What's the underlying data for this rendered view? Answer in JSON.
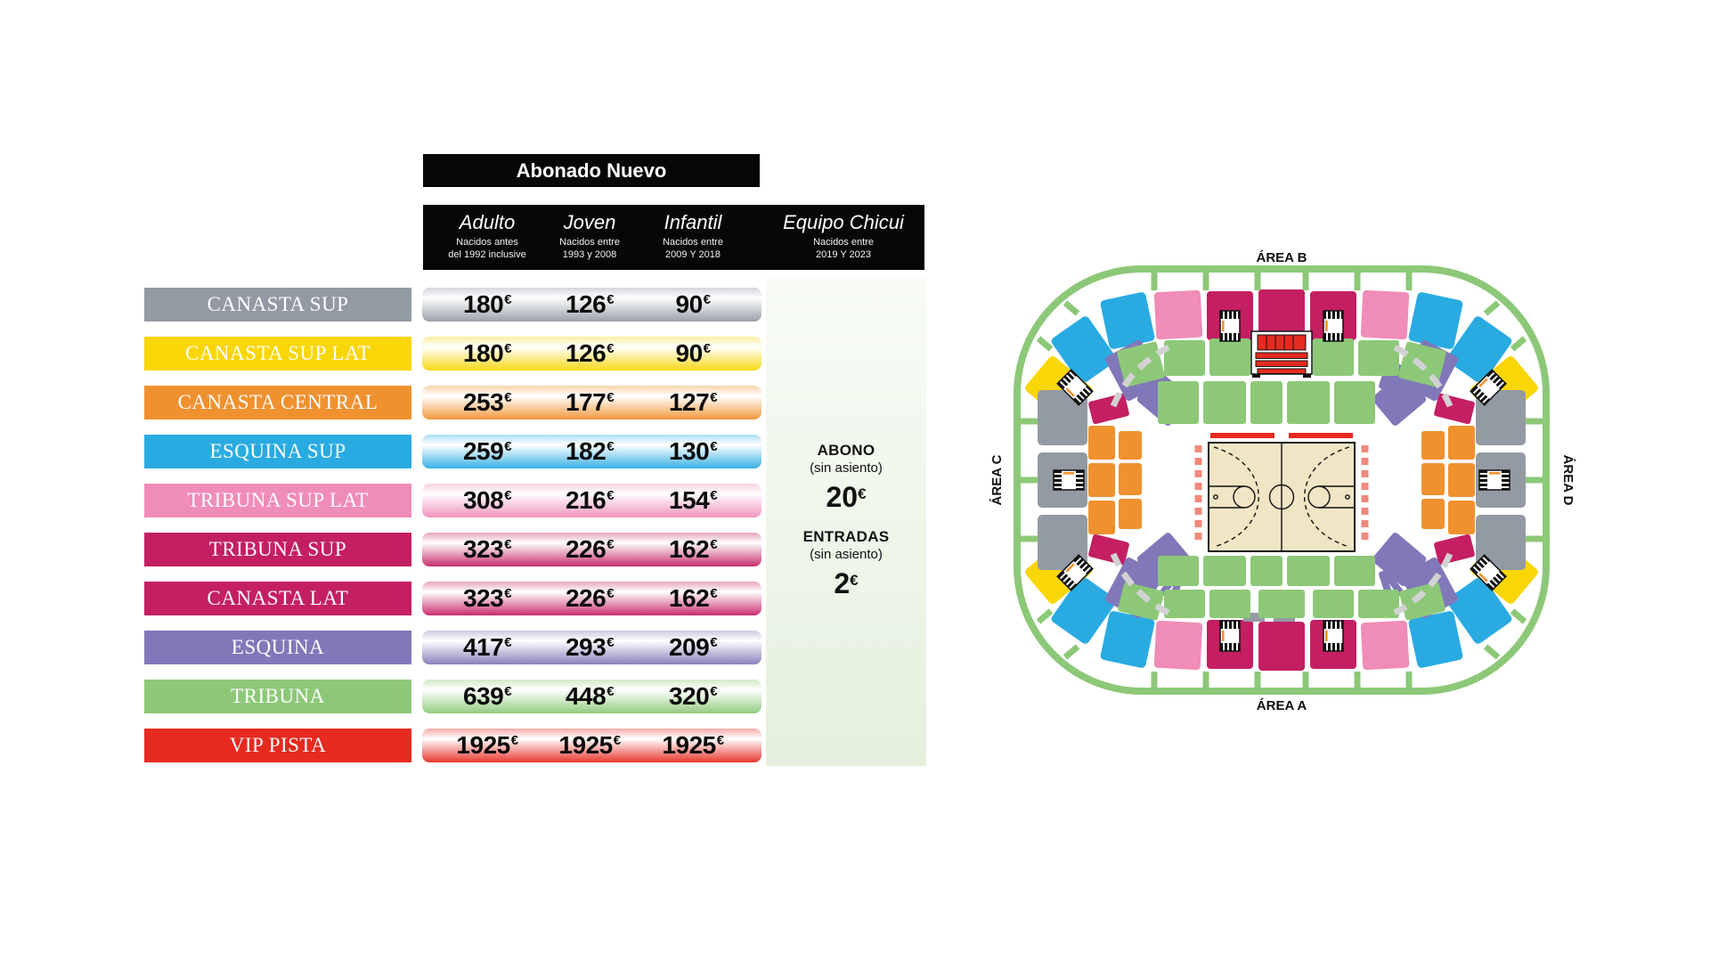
{
  "table": {
    "title": "Abonado Nuevo",
    "currency": "€",
    "columns": [
      {
        "label": "Adulto",
        "sub1": "Nacidos antes",
        "sub2": "del 1992 inclusive"
      },
      {
        "label": "Joven",
        "sub1": "Nacidos entre",
        "sub2": "1993 y 2008"
      },
      {
        "label": "Infantil",
        "sub1": "Nacidos entre",
        "sub2": "2009 Y 2018"
      },
      {
        "label": "Equipo Chicui",
        "sub1": "Nacidos entre",
        "sub2": "2019 Y 2023"
      }
    ],
    "rows": [
      {
        "category": "CANASTA SUP",
        "color": "#939AA3",
        "prices": [
          "180",
          "126",
          "90"
        ]
      },
      {
        "category": "CANASTA SUP LAT",
        "color": "#F9D606",
        "prices": [
          "180",
          "126",
          "90"
        ]
      },
      {
        "category": "CANASTA CENTRAL",
        "color": "#F0912F",
        "prices": [
          "253",
          "177",
          "127"
        ]
      },
      {
        "category": "ESQUINA SUP",
        "color": "#29ABE2",
        "prices": [
          "259",
          "182",
          "130"
        ]
      },
      {
        "category": "TRIBUNA SUP LAT",
        "color": "#F08CB8",
        "prices": [
          "308",
          "216",
          "154"
        ]
      },
      {
        "category": "TRIBUNA SUP",
        "color": "#C41F63",
        "prices": [
          "323",
          "226",
          "162"
        ]
      },
      {
        "category": "CANASTA LAT",
        "color": "#C41F63",
        "prices": [
          "323",
          "226",
          "162"
        ]
      },
      {
        "category": "ESQUINA",
        "color": "#8078B8",
        "prices": [
          "417",
          "293",
          "209"
        ]
      },
      {
        "category": "TRIBUNA",
        "color": "#8DC878",
        "prices": [
          "639",
          "448",
          "320"
        ]
      },
      {
        "category": "VIP PISTA",
        "color": "#E62A20",
        "prices": [
          "1925",
          "1925",
          "1925"
        ]
      }
    ]
  },
  "side_panel": {
    "abono_label": "ABONO",
    "abono_sub": "(sin asiento)",
    "abono_price": "20",
    "entradas_label": "ENTRADAS",
    "entradas_sub": "(sin asiento)",
    "entradas_price": "2"
  },
  "map": {
    "labels": {
      "top": "ÁREA B",
      "bottom": "ÁREA A",
      "left": "ÁREA C",
      "right": "ÁREA D"
    },
    "colors": {
      "gray": "#939AA3",
      "yellow": "#F9D606",
      "orange": "#F0912F",
      "blue": "#29ABE2",
      "pink": "#F08CB8",
      "magenta": "#C41F63",
      "purple": "#8078B8",
      "green": "#8DC878",
      "red": "#E62A20",
      "ring": "#8DC878",
      "court": "#F0E5C4",
      "salmon": "#F0897B",
      "dashgray": "#D2D2D2"
    }
  }
}
